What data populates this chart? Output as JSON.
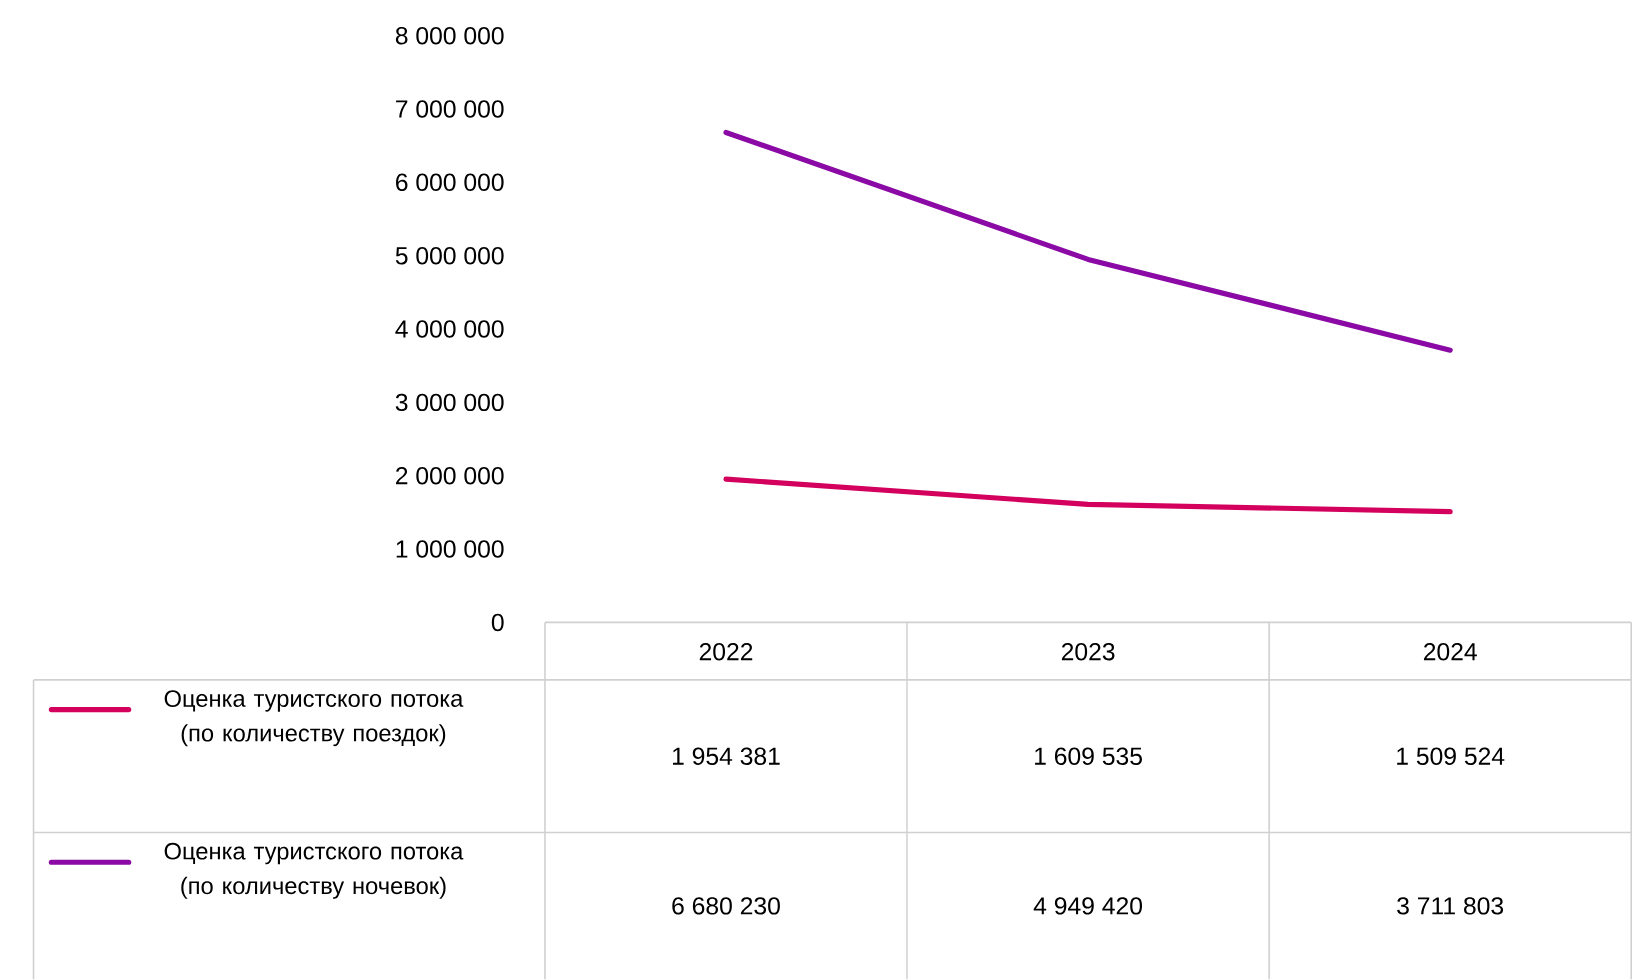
{
  "chart_data": {
    "type": "line",
    "categories": [
      "2022",
      "2023",
      "2024"
    ],
    "series": [
      {
        "name": "Оценка туристского потока (по количеству поездок)",
        "color": "#d4005e",
        "values": [
          1954381,
          1609535,
          1509524
        ],
        "value_labels": [
          "1 954 381",
          "1 609 535",
          "1 509 524"
        ]
      },
      {
        "name": "Оценка туристского потока (по количеству ночевок)",
        "color": "#8b0aa5",
        "values": [
          6680230,
          4949420,
          3711803
        ],
        "value_labels": [
          "6 680 230",
          "4 949 420",
          "3 711 803"
        ]
      }
    ],
    "ylim": [
      0,
      8000000
    ],
    "yticks": [
      0,
      {
        "value": 1000000,
        "label": "1 000 000"
      },
      {
        "value": 2000000,
        "label": "2 000 000"
      },
      {
        "value": 3000000,
        "label": "3 000 000"
      },
      {
        "value": 4000000,
        "label": "4 000 000"
      },
      {
        "value": 5000000,
        "label": "5 000 000"
      },
      {
        "value": 6000000,
        "label": "6 000 000"
      },
      {
        "value": 7000000,
        "label": "7 000 000"
      },
      {
        "value": 8000000,
        "label": "8 000 000"
      }
    ],
    "grid": false,
    "legend": "bottom",
    "marker": "none",
    "line_style": "solid"
  }
}
